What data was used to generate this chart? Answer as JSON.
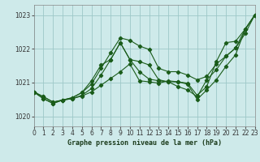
{
  "background_color": "#ceeaea",
  "grid_color": "#9dc8c8",
  "line_color": "#1a5c1a",
  "title": "Graphe pression niveau de la mer (hPa)",
  "ylim": [
    1019.7,
    1023.3
  ],
  "yticks": [
    1020,
    1021,
    1022,
    1023
  ],
  "xlim": [
    0,
    23
  ],
  "xticks": [
    0,
    1,
    2,
    3,
    4,
    5,
    6,
    7,
    8,
    9,
    10,
    11,
    12,
    13,
    14,
    15,
    16,
    17,
    18,
    19,
    20,
    21,
    22,
    23
  ],
  "series": [
    [
      1020.72,
      1020.58,
      1020.42,
      1020.48,
      1020.52,
      1020.6,
      1020.72,
      1020.92,
      1021.12,
      1021.32,
      1021.55,
      1021.05,
      1021.02,
      1020.98,
      1021.05,
      1021.02,
      1020.95,
      1020.5,
      1020.78,
      1021.08,
      1021.48,
      1021.82,
      1022.58,
      1023.0
    ],
    [
      1020.72,
      1020.58,
      1020.42,
      1020.48,
      1020.55,
      1020.7,
      1021.05,
      1021.52,
      1021.68,
      1022.18,
      1021.68,
      1021.32,
      1021.1,
      1021.05,
      1021.02,
      1021.02,
      1020.98,
      1020.62,
      1020.88,
      1021.62,
      1022.18,
      1022.22,
      1022.58,
      1023.0
    ],
    [
      1020.72,
      1020.52,
      1020.38,
      1020.48,
      1020.52,
      1020.62,
      1020.82,
      1021.22,
      1021.68,
      1022.18,
      1021.68,
      1021.62,
      1021.52,
      1021.08,
      1021.02,
      1020.88,
      1020.78,
      1020.58,
      1021.08,
      1021.38,
      1021.78,
      1022.02,
      1022.58,
      1023.0
    ],
    [
      1020.72,
      1020.52,
      1020.38,
      1020.48,
      1020.55,
      1020.7,
      1020.95,
      1021.42,
      1021.88,
      1022.32,
      1022.25,
      1022.08,
      1021.98,
      1021.42,
      1021.32,
      1021.32,
      1021.22,
      1021.08,
      1021.18,
      1021.55,
      1021.78,
      1022.02,
      1022.45,
      1023.0
    ]
  ]
}
